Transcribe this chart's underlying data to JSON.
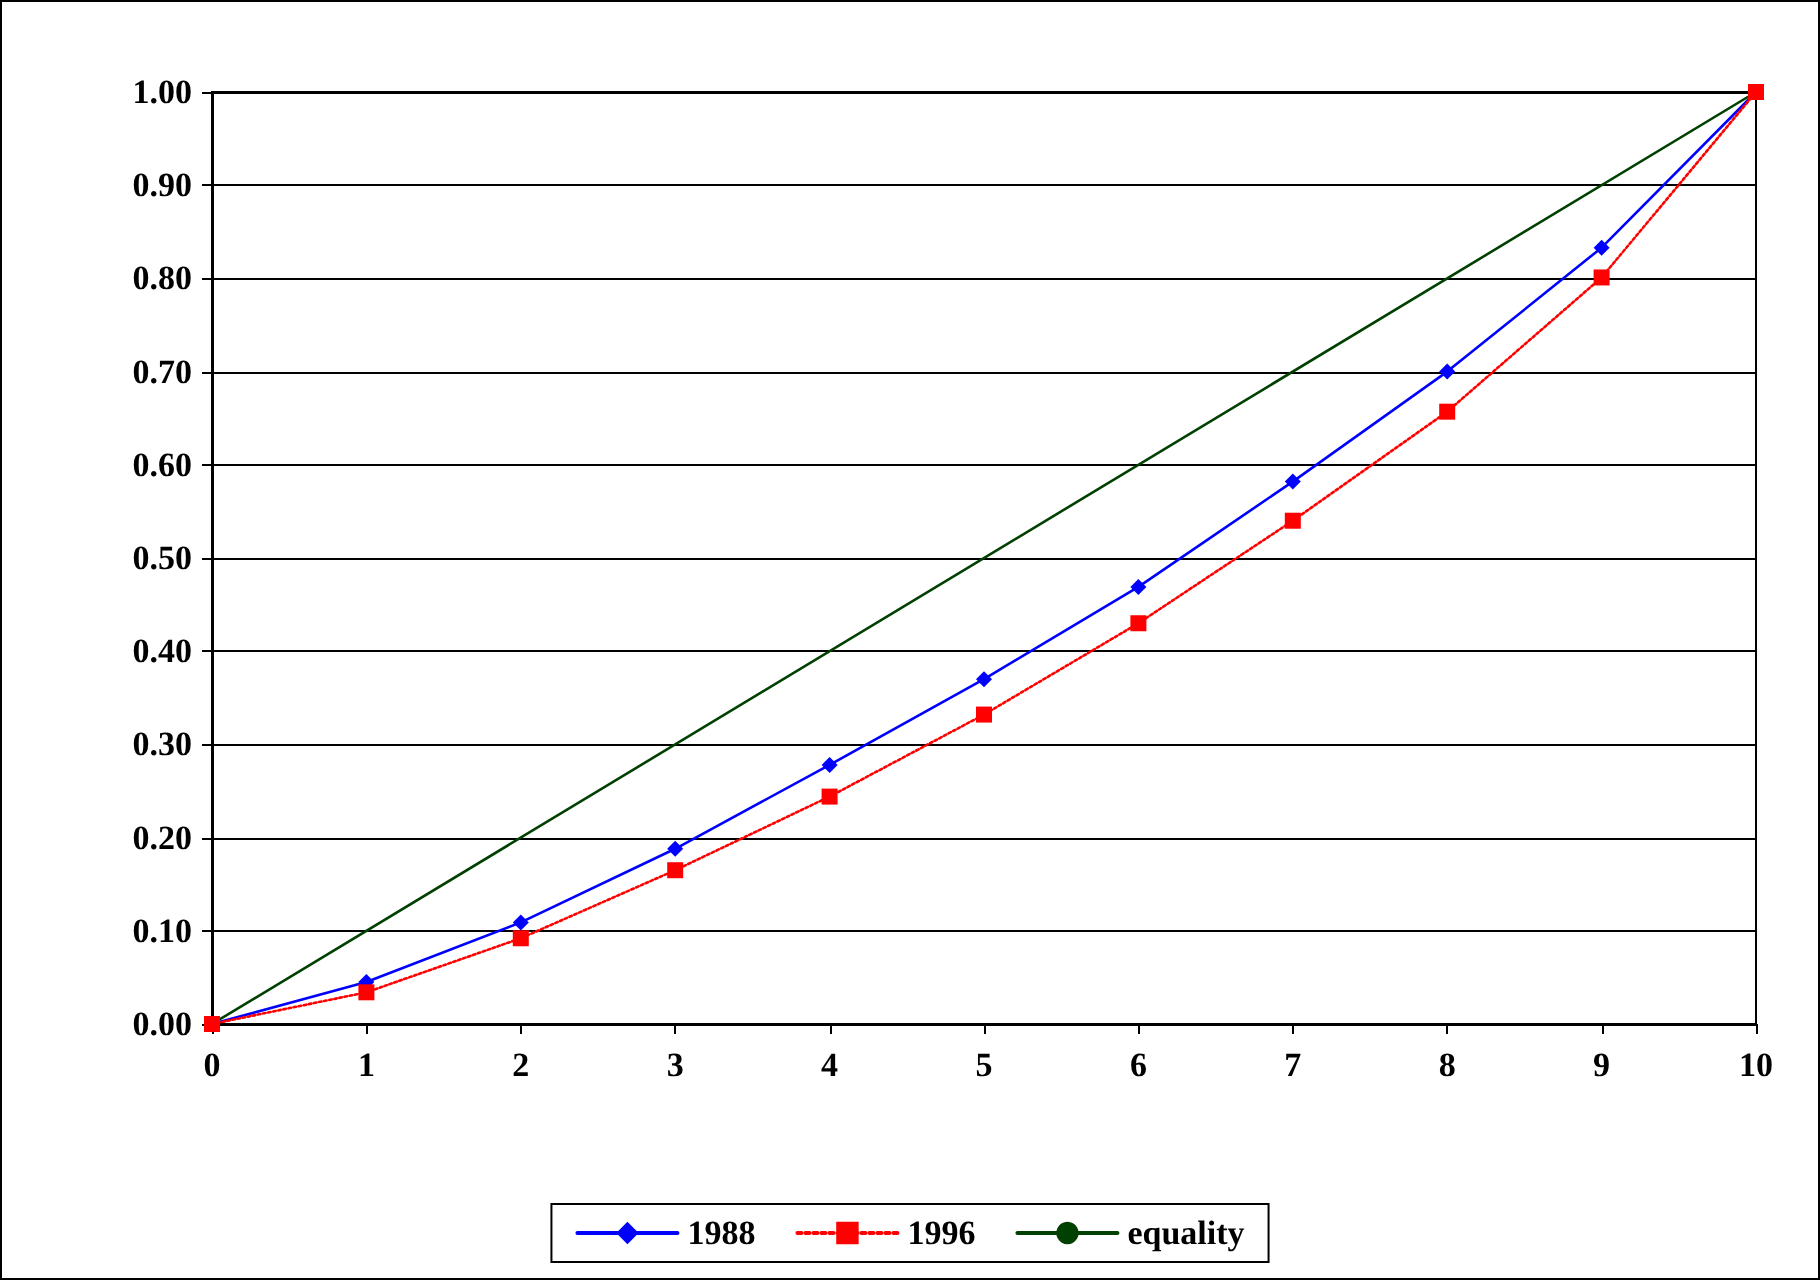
{
  "chart_data": {
    "type": "line",
    "x": [
      0,
      1,
      2,
      3,
      4,
      5,
      6,
      7,
      8,
      9,
      10
    ],
    "series": [
      {
        "name": "1988",
        "color": "#0000ff",
        "marker": "diamond",
        "line_style": "solid",
        "values": [
          0,
          0.045,
          0.109,
          0.188,
          0.278,
          0.37,
          0.469,
          0.582,
          0.7,
          0.833,
          1
        ]
      },
      {
        "name": "1996",
        "color": "#ff0000",
        "marker": "square",
        "line_style": "dotted",
        "values": [
          0,
          0.034,
          0.092,
          0.165,
          0.244,
          0.332,
          0.43,
          0.54,
          0.657,
          0.801,
          1
        ]
      },
      {
        "name": "equality",
        "color": "#004000",
        "marker": "none",
        "line_style": "solid",
        "x": [
          0,
          10
        ],
        "values": [
          0,
          1
        ]
      }
    ],
    "xlim": [
      0,
      10
    ],
    "xticks": [
      0,
      1,
      2,
      3,
      4,
      5,
      6,
      7,
      8,
      9,
      10
    ],
    "ylim": [
      0,
      1
    ],
    "yticks": [
      {
        "value": 0,
        "label": "0.00"
      },
      {
        "value": 0.1,
        "label": "0.10"
      },
      {
        "value": 0.2,
        "label": "0.20"
      },
      {
        "value": 0.3,
        "label": "0.30"
      },
      {
        "value": 0.4,
        "label": "0.40"
      },
      {
        "value": 0.5,
        "label": "0.50"
      },
      {
        "value": 0.6,
        "label": "0.60"
      },
      {
        "value": 0.7,
        "label": "0.70"
      },
      {
        "value": 0.8,
        "label": "0.80"
      },
      {
        "value": 0.9,
        "label": "0.90"
      },
      {
        "value": 1,
        "label": "1.00"
      }
    ],
    "grid": "y",
    "legend": "bottom"
  }
}
